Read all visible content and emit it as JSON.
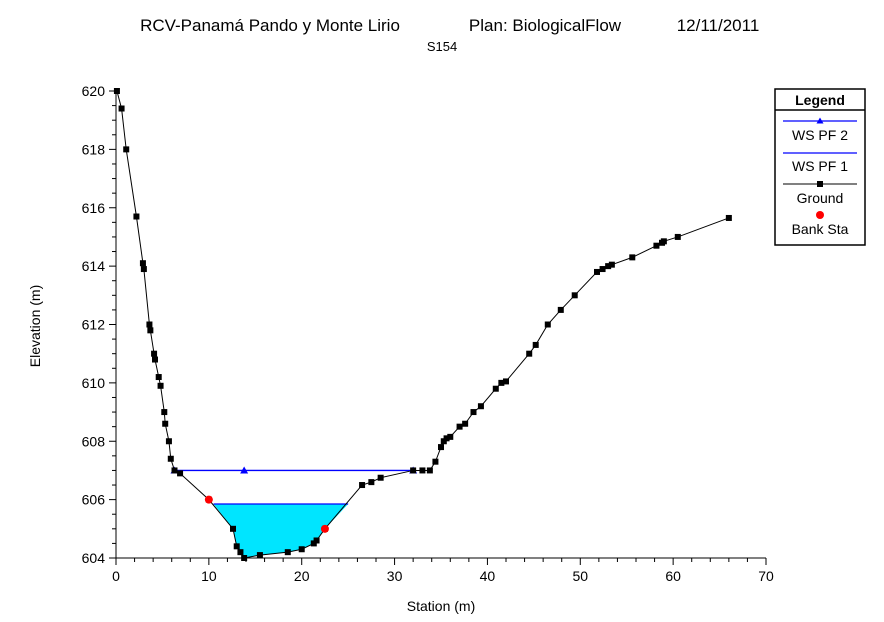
{
  "chart_data": {
    "type": "line",
    "title": "RCV-Panamá Pando y Monte Lirio",
    "plan": "Plan: BiologicalFlow",
    "date": "12/11/2011",
    "subtitle": "S154",
    "xlabel": "Station (m)",
    "ylabel": "Elevation (m)",
    "xlim": [
      0,
      70
    ],
    "ylim": [
      604,
      620
    ],
    "x_ticks": [
      "0",
      "10",
      "20",
      "30",
      "40",
      "50",
      "60",
      "70"
    ],
    "y_ticks": [
      "604",
      "606",
      "608",
      "610",
      "612",
      "614",
      "616",
      "618",
      "620"
    ],
    "grid": false,
    "legend_position": "right",
    "legend": {
      "title": "Legend",
      "entries": [
        "WS PF 2",
        "WS PF 1",
        "Ground",
        "Bank Sta"
      ]
    },
    "colors": {
      "ws_pf2": "#0000ff",
      "ws_pf1": "#0000ff",
      "water_fill": "#00e5ff",
      "ground": "#000000",
      "bank": "#ff0000"
    },
    "ground": [
      [
        0.1,
        620.0
      ],
      [
        0.6,
        619.4
      ],
      [
        1.1,
        618.0
      ],
      [
        2.2,
        615.7
      ],
      [
        2.9,
        614.1
      ],
      [
        3.0,
        613.9
      ],
      [
        3.6,
        612.0
      ],
      [
        3.7,
        611.8
      ],
      [
        4.1,
        611.0
      ],
      [
        4.2,
        610.8
      ],
      [
        4.6,
        610.2
      ],
      [
        4.8,
        609.9
      ],
      [
        5.2,
        609.0
      ],
      [
        5.3,
        608.6
      ],
      [
        5.7,
        608.0
      ],
      [
        5.9,
        607.4
      ],
      [
        6.3,
        607.0
      ],
      [
        6.9,
        606.9
      ],
      [
        10.0,
        606.0
      ],
      [
        12.6,
        605.0
      ],
      [
        13.0,
        604.4
      ],
      [
        13.4,
        604.2
      ],
      [
        13.8,
        604.0
      ],
      [
        15.5,
        604.1
      ],
      [
        18.5,
        604.2
      ],
      [
        20.0,
        604.3
      ],
      [
        21.3,
        604.5
      ],
      [
        21.6,
        604.6
      ],
      [
        22.5,
        605.0
      ],
      [
        26.5,
        606.5
      ],
      [
        27.5,
        606.6
      ],
      [
        28.5,
        606.75
      ],
      [
        32.0,
        607.0
      ],
      [
        33.0,
        607.0
      ],
      [
        33.8,
        607.0
      ],
      [
        34.4,
        607.3
      ],
      [
        35.0,
        607.8
      ],
      [
        35.3,
        608.0
      ],
      [
        35.6,
        608.1
      ],
      [
        36.0,
        608.15
      ],
      [
        37.0,
        608.5
      ],
      [
        37.6,
        608.6
      ],
      [
        38.5,
        609.0
      ],
      [
        39.3,
        609.2
      ],
      [
        40.9,
        609.8
      ],
      [
        41.5,
        610.0
      ],
      [
        42.0,
        610.05
      ],
      [
        44.5,
        611.0
      ],
      [
        45.2,
        611.3
      ],
      [
        46.5,
        612.0
      ],
      [
        47.9,
        612.5
      ],
      [
        49.4,
        613.0
      ],
      [
        51.8,
        613.8
      ],
      [
        52.4,
        613.9
      ],
      [
        53.0,
        614.0
      ],
      [
        53.4,
        614.05
      ],
      [
        55.6,
        614.3
      ],
      [
        58.2,
        614.7
      ],
      [
        58.8,
        614.8
      ],
      [
        59.0,
        614.85
      ],
      [
        60.5,
        615.0
      ],
      [
        66.0,
        615.65
      ]
    ],
    "bank_stations": [
      [
        10.0,
        606.0
      ],
      [
        22.5,
        605.0
      ]
    ],
    "ws_pf2": {
      "elevation": 607.0,
      "x_start": 6.3,
      "x_end": 32.0,
      "marker_x": [
        6.3,
        13.8,
        32.0
      ]
    },
    "ws_pf1": {
      "elevation": 605.85,
      "x_start": 10.5,
      "x_end": 25.0
    }
  }
}
